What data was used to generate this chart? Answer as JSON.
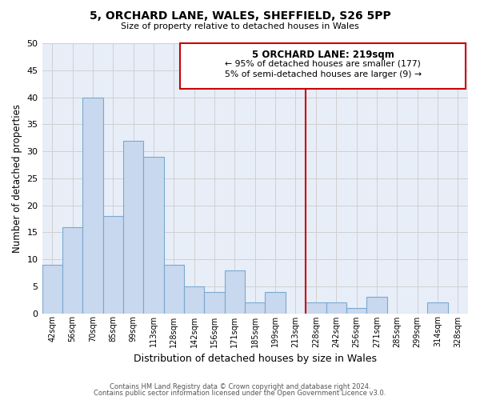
{
  "title": "5, ORCHARD LANE, WALES, SHEFFIELD, S26 5PP",
  "subtitle": "Size of property relative to detached houses in Wales",
  "xlabel": "Distribution of detached houses by size in Wales",
  "ylabel": "Number of detached properties",
  "footer_line1": "Contains HM Land Registry data © Crown copyright and database right 2024.",
  "footer_line2": "Contains public sector information licensed under the Open Government Licence v3.0.",
  "bin_labels": [
    "42sqm",
    "56sqm",
    "70sqm",
    "85sqm",
    "99sqm",
    "113sqm",
    "128sqm",
    "142sqm",
    "156sqm",
    "171sqm",
    "185sqm",
    "199sqm",
    "213sqm",
    "228sqm",
    "242sqm",
    "256sqm",
    "271sqm",
    "285sqm",
    "299sqm",
    "314sqm",
    "328sqm"
  ],
  "bar_heights": [
    9,
    16,
    40,
    18,
    32,
    29,
    9,
    5,
    4,
    8,
    2,
    4,
    0,
    2,
    2,
    1,
    3,
    0,
    0,
    2,
    0
  ],
  "bar_color": "#c8d8ee",
  "bar_edge_color": "#7aa8d0",
  "grid_color": "#d0d0d0",
  "ylim": [
    0,
    50
  ],
  "yticks": [
    0,
    5,
    10,
    15,
    20,
    25,
    30,
    35,
    40,
    45,
    50
  ],
  "vline_x": 13.0,
  "vline_color": "#cc0000",
  "annotation_title": "5 ORCHARD LANE: 219sqm",
  "annotation_line1": "← 95% of detached houses are smaller (177)",
  "annotation_line2": "5% of semi-detached houses are larger (9) →",
  "annotation_box_color": "#ffffff",
  "annotation_box_edge": "#cc0000",
  "background_color": "#ffffff",
  "plot_bg_color": "#e8eef8"
}
